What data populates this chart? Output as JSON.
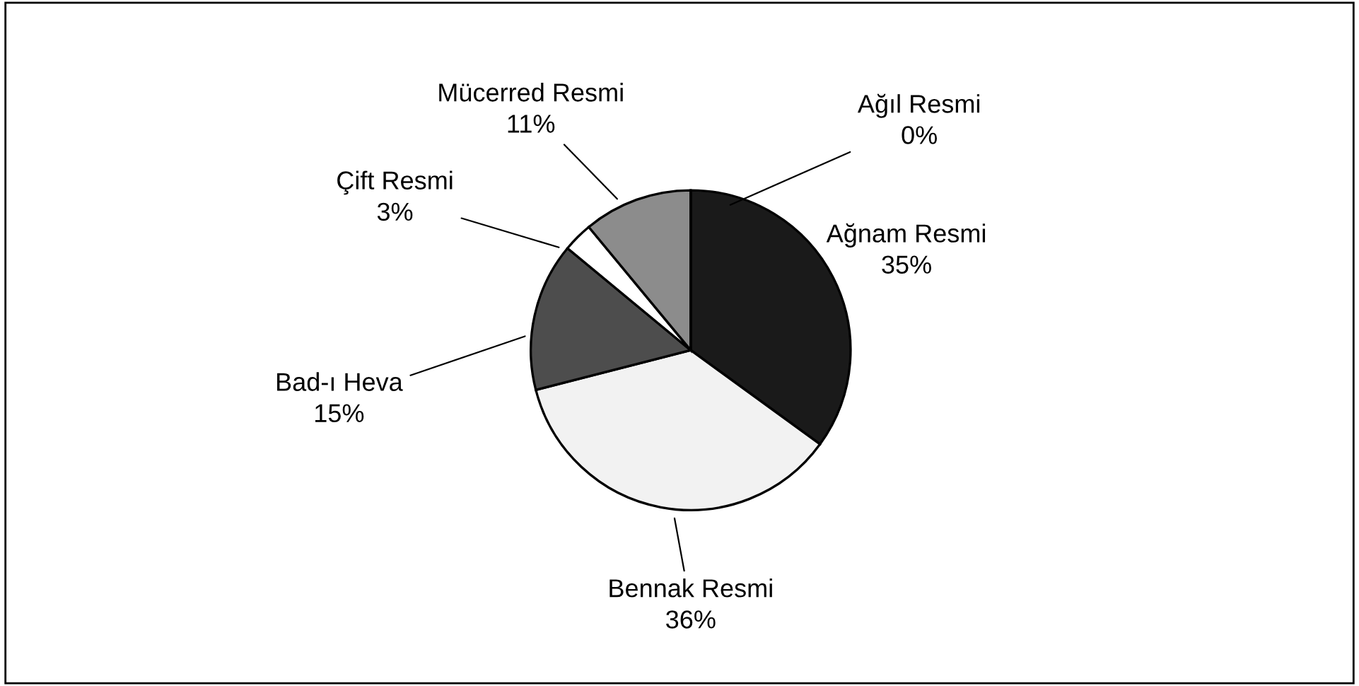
{
  "chart_data": {
    "type": "pie",
    "categories": [
      "Ağnam Resmi",
      "Bennak Resmi",
      "Bad-ı Heva",
      "Çift Resmi",
      "Mücerred Resmi",
      "Ağıl Resmi"
    ],
    "values": [
      35,
      36,
      15,
      3,
      11,
      0
    ],
    "value_labels": [
      "35%",
      "36%",
      "15%",
      "3%",
      "11%",
      "0%"
    ],
    "colors": [
      "#1a1a1a",
      "#f2f2f2",
      "#4d4d4d",
      "#ffffff",
      "#8c8c8c",
      "#cccccc"
    ],
    "legend": false
  }
}
